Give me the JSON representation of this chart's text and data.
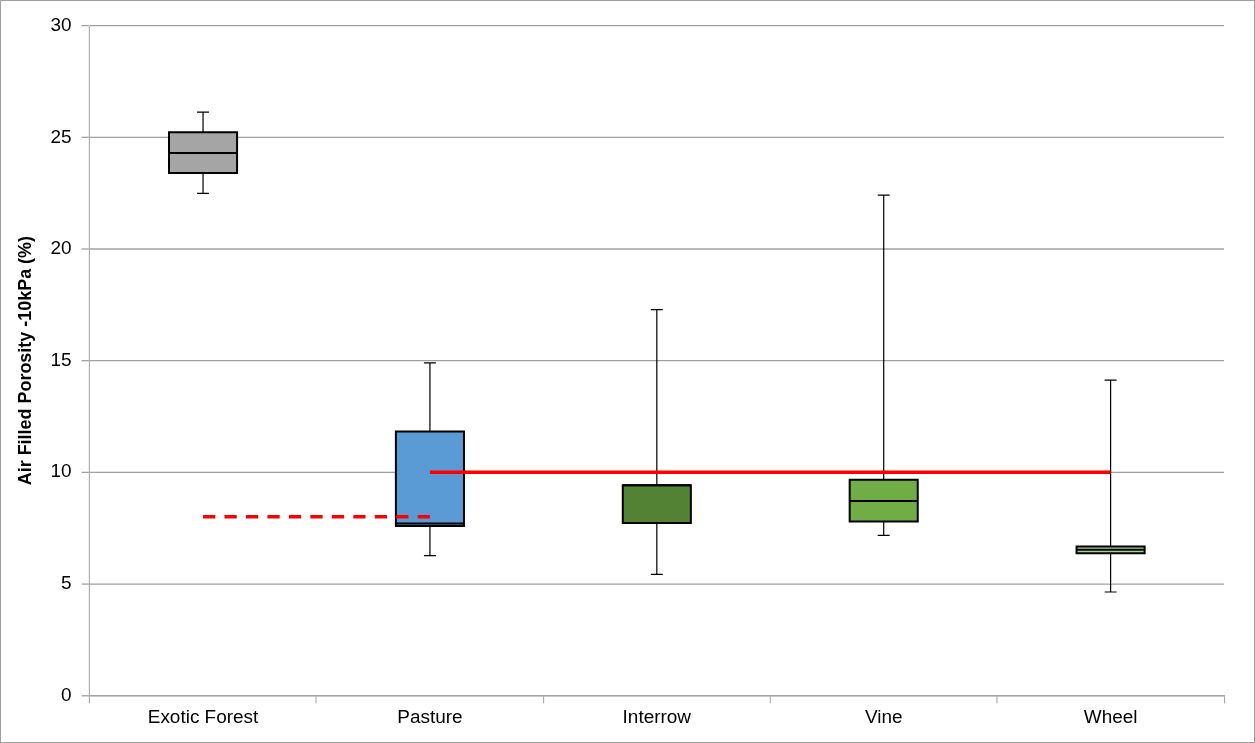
{
  "chart_data": {
    "type": "box",
    "ylabel": "Air Filled Porosity -10kPa (%)",
    "categories": [
      "Exotic Forest",
      "Pasture",
      "Interrow",
      "Vine",
      "Wheel"
    ],
    "colors": [
      "#a5a5a5",
      "#5b9bd5",
      "#548235",
      "#70ad47",
      "#a9d18e"
    ],
    "boxes": [
      {
        "low": 22.5,
        "q1": 23.41,
        "median": 24.31,
        "q3": 25.23,
        "high": 26.14
      },
      {
        "low": 6.26,
        "q1": 7.59,
        "median": 7.7,
        "q3": 11.82,
        "high": 14.9
      },
      {
        "low": 5.42,
        "q1": 7.72,
        "median": 9.42,
        "q3": 9.42,
        "high": 17.29
      },
      {
        "low": 7.17,
        "q1": 7.79,
        "median": 8.71,
        "q3": 9.66,
        "high": 22.42
      },
      {
        "low": 4.63,
        "q1": 6.37,
        "median": 6.52,
        "q3": 6.67,
        "high": 14.13
      }
    ],
    "series": [
      {
        "type": "line",
        "x": [
          "Pasture",
          "Wheel"
        ],
        "values": [
          10,
          10
        ],
        "color": "#ff0000",
        "line_style": "solid"
      },
      {
        "type": "line",
        "x": [
          "Exotic Forest",
          "Pasture"
        ],
        "values": [
          8,
          8
        ],
        "color": "#ff0000",
        "line_style": "dashed"
      }
    ],
    "ylim": [
      0,
      30
    ],
    "yticks": [
      0,
      5,
      10,
      15,
      20,
      25,
      30
    ],
    "grid": "y",
    "marker": "none"
  }
}
